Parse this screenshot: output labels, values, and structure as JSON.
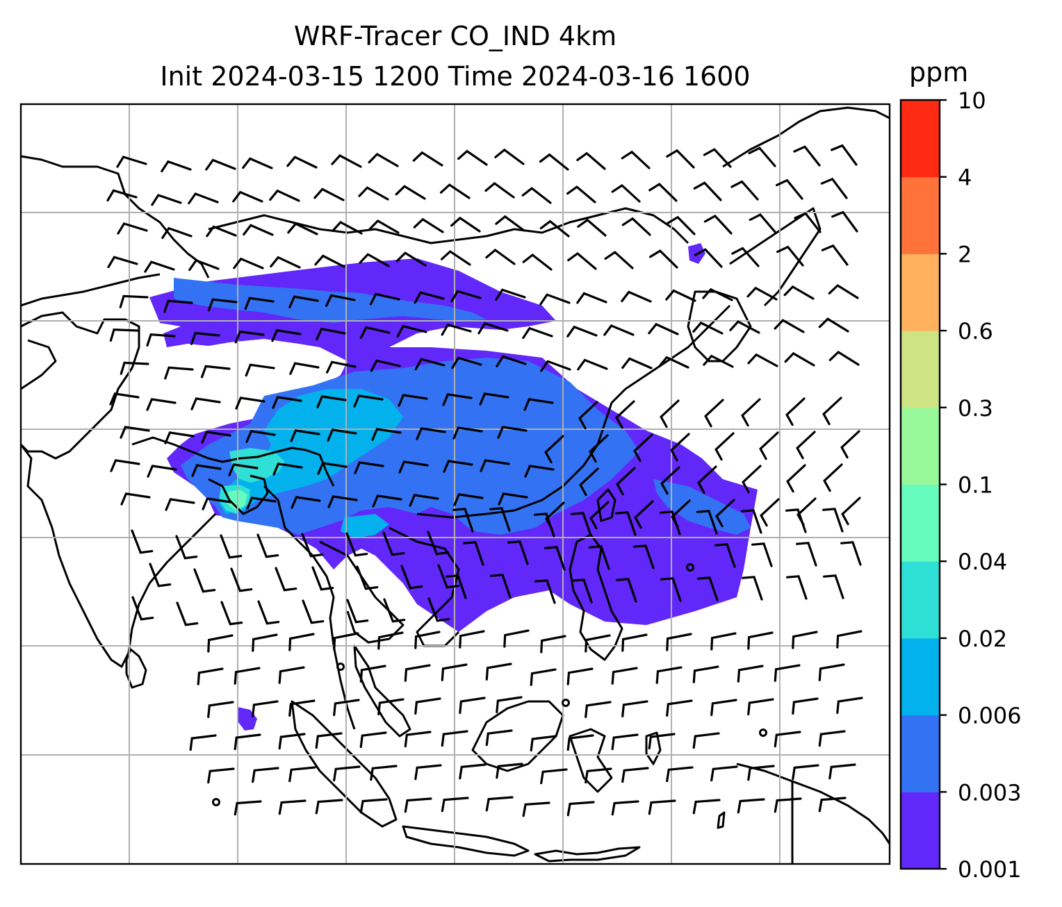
{
  "title_line1": "WRF-Tracer CO_IND 4km",
  "title_line2": "Init 2024-03-15 1200 Time 2024-03-16 1600",
  "colorbar": {
    "unit": "ppm",
    "levels": [
      "0.001",
      "0.003",
      "0.006",
      "0.02",
      "0.04",
      "0.1",
      "0.3",
      "0.6",
      "2",
      "4",
      "10"
    ],
    "colors": [
      "#6128f9",
      "#3373f3",
      "#03b2ec",
      "#2ee0d6",
      "#66fcbd",
      "#99f99a",
      "#cee384",
      "#ffb15e",
      "#ff733b",
      "#ff2a14"
    ]
  },
  "map": {
    "ocean_color": "#ffffff",
    "coastline_color": "#000000",
    "grid_color": "#b0b0b0",
    "plume_colors": {
      "low": "#6128f9",
      "mid": "#3373f3",
      "high": "#03b2ec",
      "peak": "#2ee0d6",
      "max": "#66fcbd"
    }
  }
}
